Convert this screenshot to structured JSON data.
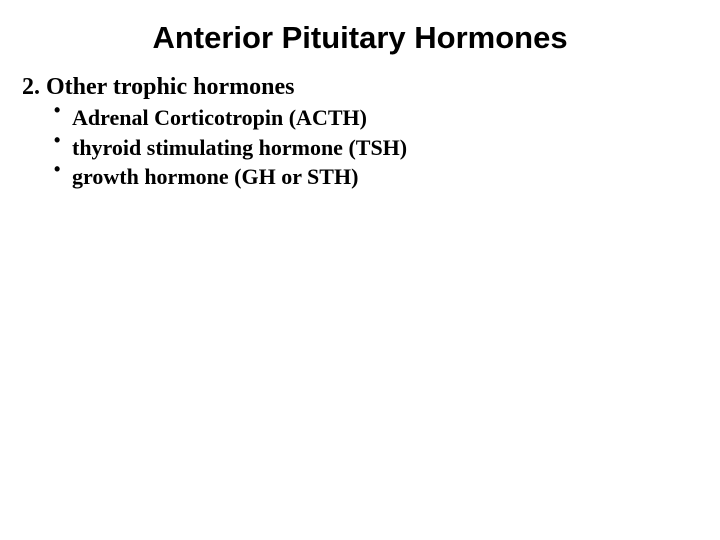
{
  "slide": {
    "title": "Anterior Pituitary Hormones",
    "title_fontsize": 31,
    "title_color": "#000000",
    "section": {
      "heading": "2. Other trophic hormones",
      "heading_fontsize": 24,
      "bullets": [
        "Adrenal Corticotropin (ACTH)",
        "thyroid stimulating hormone (TSH)",
        "growth hormone (GH or STH)"
      ],
      "bullet_fontsize": 22,
      "bullet_color": "#000000"
    },
    "background_color": "#ffffff"
  }
}
